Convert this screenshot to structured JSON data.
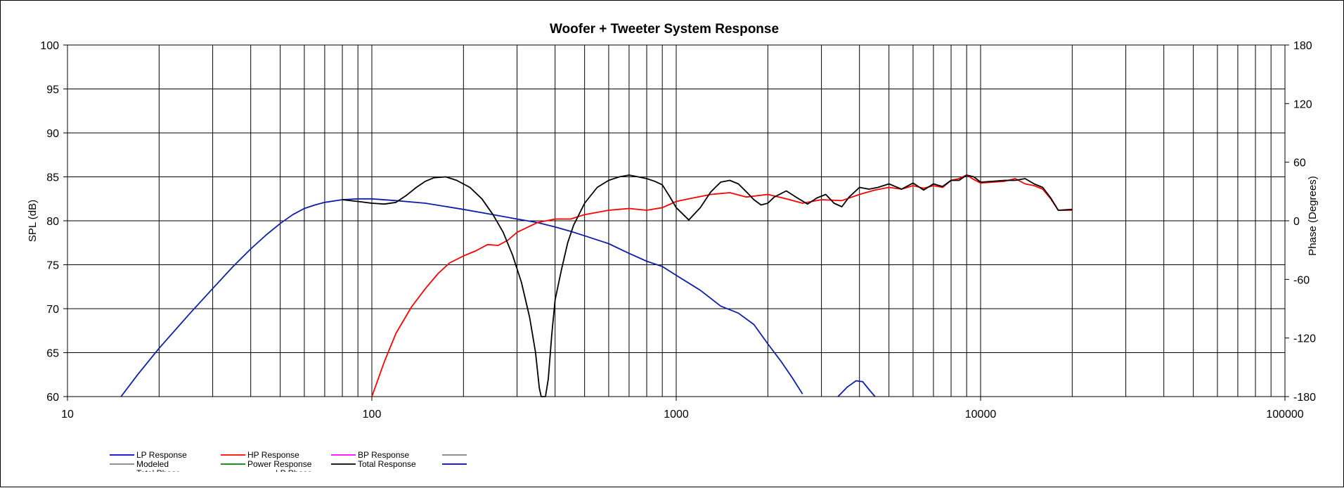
{
  "chart_data": {
    "type": "line",
    "title": "Woofer + Tweeter     System Response",
    "xscale": "log",
    "xlim": [
      10,
      100000
    ],
    "x_tick_labels": [
      "10",
      "100",
      "1000",
      "10000",
      "100000"
    ],
    "ylabel": "SPL (dB)",
    "ylim": [
      60,
      100
    ],
    "y_tick_labels": [
      "100",
      "95",
      "90",
      "85",
      "80",
      "75",
      "70",
      "65",
      "60"
    ],
    "y2label": "Phase (Degrees)",
    "y2lim": [
      -180,
      180
    ],
    "y2_tick_labels": [
      "180",
      "120",
      "60",
      "0",
      "-60",
      "-120",
      "-180"
    ],
    "grid": true,
    "legend_position": "bottom-left",
    "legend": [
      {
        "label": "LP Response",
        "color": "#0000cc"
      },
      {
        "label": "HP Response",
        "color": "#ff0000"
      },
      {
        "label": "BP Response",
        "color": "#ff00ff"
      },
      {
        "label": "",
        "color": "#808080"
      },
      {
        "label": "Modeled",
        "color": "#808080"
      },
      {
        "label": "Power Response",
        "color": "#008000"
      },
      {
        "label": "Total Response",
        "color": "#000000"
      },
      {
        "label": "",
        "color": "#0000cc"
      },
      {
        "label": "Total Phase",
        "color": "#808080"
      },
      {
        "label": "LP Phase",
        "color": "#0000cc"
      }
    ],
    "series": [
      {
        "name": "LP Response",
        "color": "#0d1fa6",
        "x": [
          15,
          17,
          20,
          25,
          30,
          35,
          40,
          45,
          50,
          55,
          60,
          65,
          70,
          80,
          90,
          100,
          120,
          150,
          200,
          250,
          300,
          350,
          400,
          450,
          500,
          600,
          700,
          800,
          900,
          1000,
          1200,
          1400,
          1600,
          1800,
          2000,
          2200,
          2400,
          2600
        ],
        "y": [
          60,
          62.5,
          65.5,
          69.3,
          72.3,
          74.8,
          76.8,
          78.4,
          79.7,
          80.7,
          81.4,
          81.8,
          82.1,
          82.4,
          82.5,
          82.5,
          82.3,
          82,
          81.3,
          80.7,
          80.2,
          79.8,
          79.3,
          78.8,
          78.3,
          77.4,
          76.3,
          75.4,
          74.8,
          73.8,
          72.1,
          70.3,
          69.5,
          68.2,
          66,
          64.1,
          62.2,
          60.3
        ]
      },
      {
        "name": "LP Response (segment)",
        "color": "#0d1fa6",
        "x": [
          3400,
          3650,
          3900,
          4100,
          4300,
          4500
        ],
        "y": [
          60,
          61.1,
          61.8,
          61.7,
          60.8,
          60
        ]
      },
      {
        "name": "HP Response",
        "color": "#ff0000",
        "x": [
          100,
          110,
          120,
          135,
          150,
          165,
          180,
          200,
          220,
          240,
          260,
          280,
          300,
          350,
          400,
          450,
          500,
          600,
          700,
          800,
          900,
          1000,
          1100,
          1300,
          1500,
          1700,
          2000,
          2300,
          2600,
          3000,
          3500,
          4000,
          4500,
          5000,
          5500,
          6000,
          6500,
          7000,
          7500,
          8000,
          8500,
          9000,
          9500,
          10000,
          11000,
          12000,
          13000,
          14000,
          15000,
          16000,
          17000,
          18000,
          20000
        ],
        "y": [
          60,
          64,
          67.2,
          70.2,
          72.3,
          74,
          75.2,
          76,
          76.6,
          77.3,
          77.2,
          77.8,
          78.7,
          79.8,
          80.2,
          80.2,
          80.7,
          81.2,
          81.4,
          81.2,
          81.5,
          82.2,
          82.5,
          83,
          83.2,
          82.7,
          83,
          82.5,
          82,
          82.4,
          82.3,
          83,
          83.5,
          83.8,
          83.6,
          84,
          83.7,
          84,
          83.8,
          84.6,
          84.8,
          85.2,
          84.7,
          84.3,
          84.4,
          84.5,
          84.8,
          84.2,
          84,
          83.6,
          82.5,
          81.2,
          81.2
        ]
      },
      {
        "name": "Total Response",
        "color": "#000000",
        "x": [
          80,
          90,
          100,
          110,
          120,
          130,
          140,
          150,
          160,
          175,
          190,
          210,
          230,
          250,
          270,
          290,
          310,
          330,
          345,
          355,
          360,
          365,
          372,
          380,
          390,
          400,
          420,
          440,
          460,
          500,
          550,
          600,
          650,
          700,
          750,
          800,
          850,
          900,
          950,
          1000,
          1100,
          1200,
          1300,
          1400,
          1500,
          1600,
          1700,
          1800,
          1900,
          2000,
          2100,
          2300,
          2500,
          2700,
          2900,
          3100,
          3300,
          3500,
          3700,
          4000,
          4300,
          4600,
          5000,
          5500,
          6000,
          6500,
          7000,
          7500,
          8000,
          8500,
          9000,
          9500,
          10000,
          11000,
          12000,
          13000,
          14000,
          15000,
          16000,
          17000,
          18000,
          20000
        ],
        "y": [
          82.4,
          82.2,
          82,
          81.9,
          82.1,
          82.9,
          83.8,
          84.5,
          84.9,
          85,
          84.6,
          83.8,
          82.5,
          80.7,
          78.7,
          76.1,
          73,
          69,
          65,
          61,
          60,
          60,
          60,
          62,
          67,
          71,
          74.5,
          77.5,
          79.5,
          82,
          83.8,
          84.6,
          85,
          85.2,
          85,
          84.8,
          84.5,
          84.1,
          82.8,
          81.5,
          80.1,
          81.5,
          83.3,
          84.4,
          84.6,
          84.2,
          83.3,
          82.4,
          81.8,
          82,
          82.7,
          83.4,
          82.6,
          81.9,
          82.6,
          83,
          82,
          81.6,
          82.7,
          83.8,
          83.6,
          83.8,
          84.2,
          83.6,
          84.3,
          83.5,
          84.2,
          83.9,
          84.6,
          84.6,
          85.2,
          85,
          84.4,
          84.5,
          84.6,
          84.6,
          84.8,
          84.2,
          83.8,
          82.6,
          81.2,
          81.3
        ]
      }
    ]
  }
}
